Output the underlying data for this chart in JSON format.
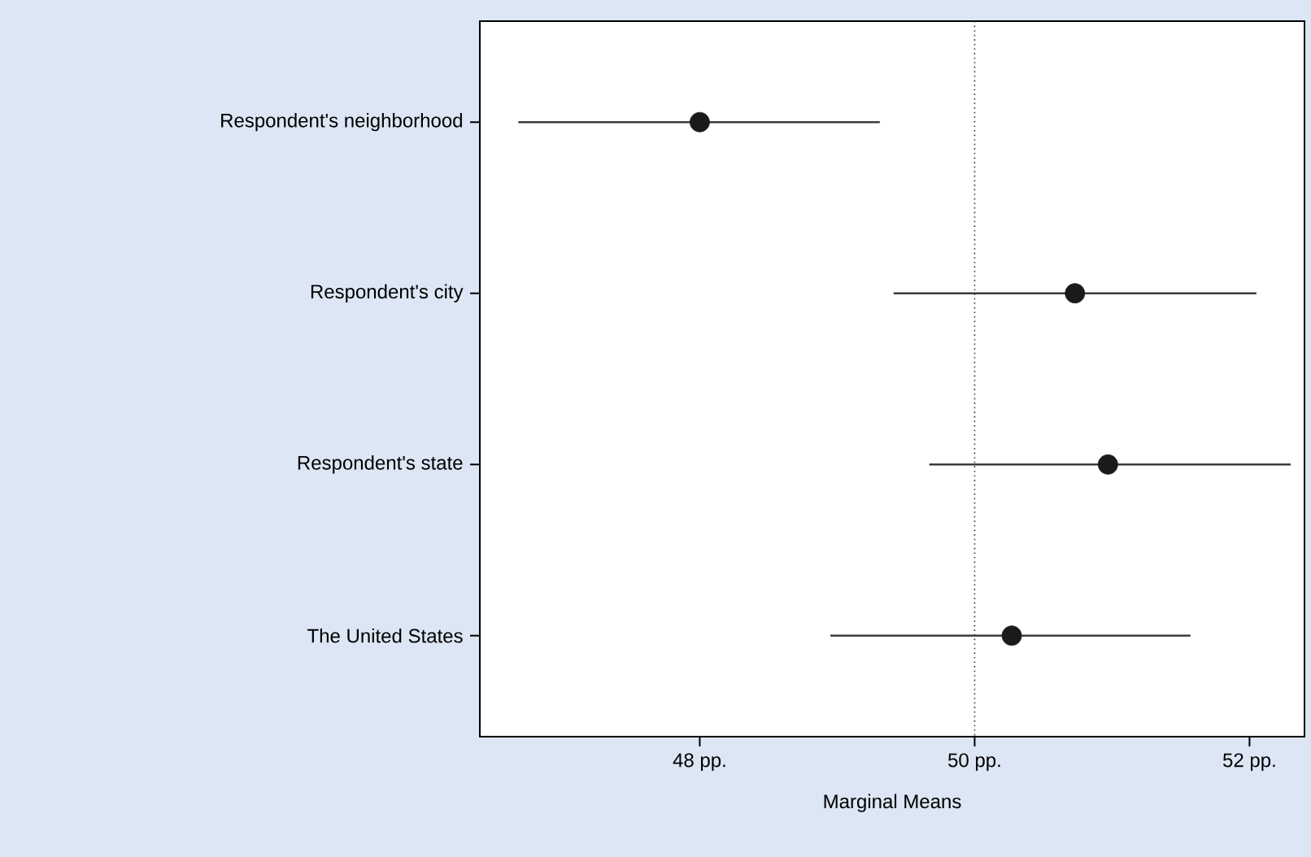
{
  "chart_data": {
    "type": "scatter",
    "orientation": "horizontal",
    "xlabel": "Marginal Means",
    "categories": [
      "Respondent's neighborhood",
      "Respondent's city",
      "Respondent's state",
      "The United States"
    ],
    "values": [
      48.0,
      50.73,
      50.97,
      50.27
    ],
    "errors": [
      [
        46.68,
        49.31
      ],
      [
        49.41,
        52.05
      ],
      [
        49.67,
        52.3
      ],
      [
        48.95,
        51.57
      ]
    ],
    "color": "#1a1a1a",
    "marker": "circle",
    "xlim": [
      46.4,
      52.4
    ],
    "xticks": [
      {
        "value": 48,
        "label": "48 pp."
      },
      {
        "value": 50,
        "label": "50 pp."
      },
      {
        "value": 52,
        "label": "52 pp."
      }
    ],
    "ref_lines": [
      {
        "axis": "x",
        "value": 50,
        "line_style": "dotted",
        "color": "#333333"
      }
    ],
    "grid": false
  }
}
